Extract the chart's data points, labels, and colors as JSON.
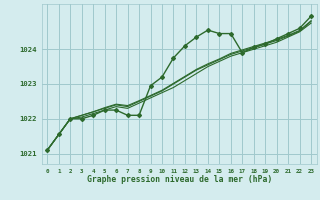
{
  "title": "Graphe pression niveau de la mer (hPa)",
  "bg_color": "#d4ecee",
  "grid_color": "#a0c8cc",
  "line_color": "#2d6a2d",
  "marker_color": "#2d6a2d",
  "xlim": [
    -0.5,
    23.5
  ],
  "ylim": [
    1020.7,
    1025.3
  ],
  "yticks": [
    1021,
    1022,
    1023,
    1024
  ],
  "xticks": [
    0,
    1,
    2,
    3,
    4,
    5,
    6,
    7,
    8,
    9,
    10,
    11,
    12,
    13,
    14,
    15,
    16,
    17,
    18,
    19,
    20,
    21,
    22,
    23
  ],
  "series_marked": [
    1021.1,
    1021.55,
    1022.0,
    1022.0,
    1022.1,
    1022.25,
    1022.25,
    1022.1,
    1022.1,
    1022.95,
    1023.2,
    1023.75,
    1024.1,
    1024.35,
    1024.55,
    1024.45,
    1024.45,
    1023.9,
    1024.05,
    1024.15,
    1024.3,
    1024.45,
    1024.6,
    1024.95
  ],
  "series_linear": [
    [
      1021.1,
      1021.55,
      1022.0,
      1022.05,
      1022.15,
      1022.25,
      1022.35,
      1022.3,
      1022.45,
      1022.6,
      1022.75,
      1022.9,
      1023.1,
      1023.3,
      1023.5,
      1023.65,
      1023.8,
      1023.9,
      1024.0,
      1024.1,
      1024.2,
      1024.35,
      1024.5,
      1024.75
    ],
    [
      1021.1,
      1021.55,
      1022.0,
      1022.1,
      1022.2,
      1022.3,
      1022.4,
      1022.35,
      1022.5,
      1022.65,
      1022.8,
      1023.0,
      1023.2,
      1023.4,
      1023.55,
      1023.7,
      1023.85,
      1023.95,
      1024.05,
      1024.15,
      1024.25,
      1024.38,
      1024.52,
      1024.8
    ],
    [
      1021.1,
      1021.55,
      1022.0,
      1022.1,
      1022.2,
      1022.32,
      1022.42,
      1022.38,
      1022.52,
      1022.67,
      1022.82,
      1023.02,
      1023.22,
      1023.42,
      1023.58,
      1023.72,
      1023.88,
      1023.98,
      1024.08,
      1024.18,
      1024.28,
      1024.4,
      1024.54,
      1024.82
    ]
  ]
}
